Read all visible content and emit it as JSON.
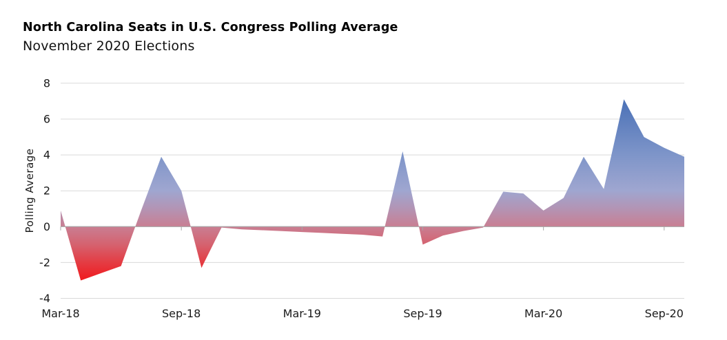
{
  "header": {
    "title": "North Carolina Seats in U.S. Congress Polling Average",
    "subtitle": "November 2020 Elections"
  },
  "chart_data": {
    "type": "area",
    "title": "North Carolina Seats in U.S. Congress Polling Average",
    "subtitle": "November 2020 Elections",
    "ylabel": "Polling Average",
    "xlabel": "",
    "x": [
      "Mar-18",
      "Apr-18",
      "May-18",
      "Jun-18",
      "Jul-18",
      "Aug-18",
      "Sep-18",
      "Oct-18",
      "Nov-18",
      "Dec-18",
      "Jan-19",
      "Feb-19",
      "Mar-19",
      "Apr-19",
      "May-19",
      "Jun-19",
      "Jul-19",
      "Aug-19",
      "Sep-19",
      "Oct-19",
      "Nov-19",
      "Dec-19",
      "Jan-20",
      "Feb-20",
      "Mar-20",
      "Apr-20",
      "May-20",
      "Jun-20",
      "Jul-20",
      "Aug-20",
      "Sep-20",
      "Oct-20"
    ],
    "values": [
      0.9,
      -3.0,
      -2.6,
      -2.2,
      0.9,
      3.9,
      2.0,
      -2.3,
      -0.05,
      -0.15,
      -0.2,
      -0.25,
      -0.3,
      -0.35,
      -0.4,
      -0.45,
      -0.55,
      4.2,
      -1.0,
      -0.5,
      -0.25,
      -0.05,
      1.95,
      1.85,
      0.9,
      1.6,
      3.9,
      2.1,
      7.1,
      5.0,
      4.4,
      3.9
    ],
    "x_tick_labels": [
      "Mar-18",
      "Sep-18",
      "Mar-19",
      "Sep-19",
      "Mar-20",
      "Sep-20"
    ],
    "x_tick_every": 6,
    "yticks": [
      8,
      6,
      4,
      2,
      0,
      -2,
      -4
    ],
    "ylim": [
      -4,
      8
    ],
    "grid": "horizontal",
    "legend": "none",
    "baseline": 0,
    "colors": {
      "gridline": "#D9D9D9",
      "zero_axis": "#A6A6A6",
      "tick_mark": "#A6A6A6",
      "axis_text": "#1A1A1A",
      "gradient_stops": [
        {
          "offset": 0.0,
          "color": "#3E66AD"
        },
        {
          "offset": 0.083,
          "color": "#4C72B7"
        },
        {
          "offset": 0.333,
          "color": "#7E95C9"
        },
        {
          "offset": 0.5,
          "color": "#9FA6D0"
        },
        {
          "offset": 0.583,
          "color": "#B394B4"
        },
        {
          "offset": 0.667,
          "color": "#C97E92"
        },
        {
          "offset": 0.75,
          "color": "#D5626F"
        },
        {
          "offset": 0.833,
          "color": "#E43C43"
        },
        {
          "offset": 0.917,
          "color": "#F01A1E"
        },
        {
          "offset": 1.0,
          "color": "#FB0406"
        }
      ]
    }
  }
}
